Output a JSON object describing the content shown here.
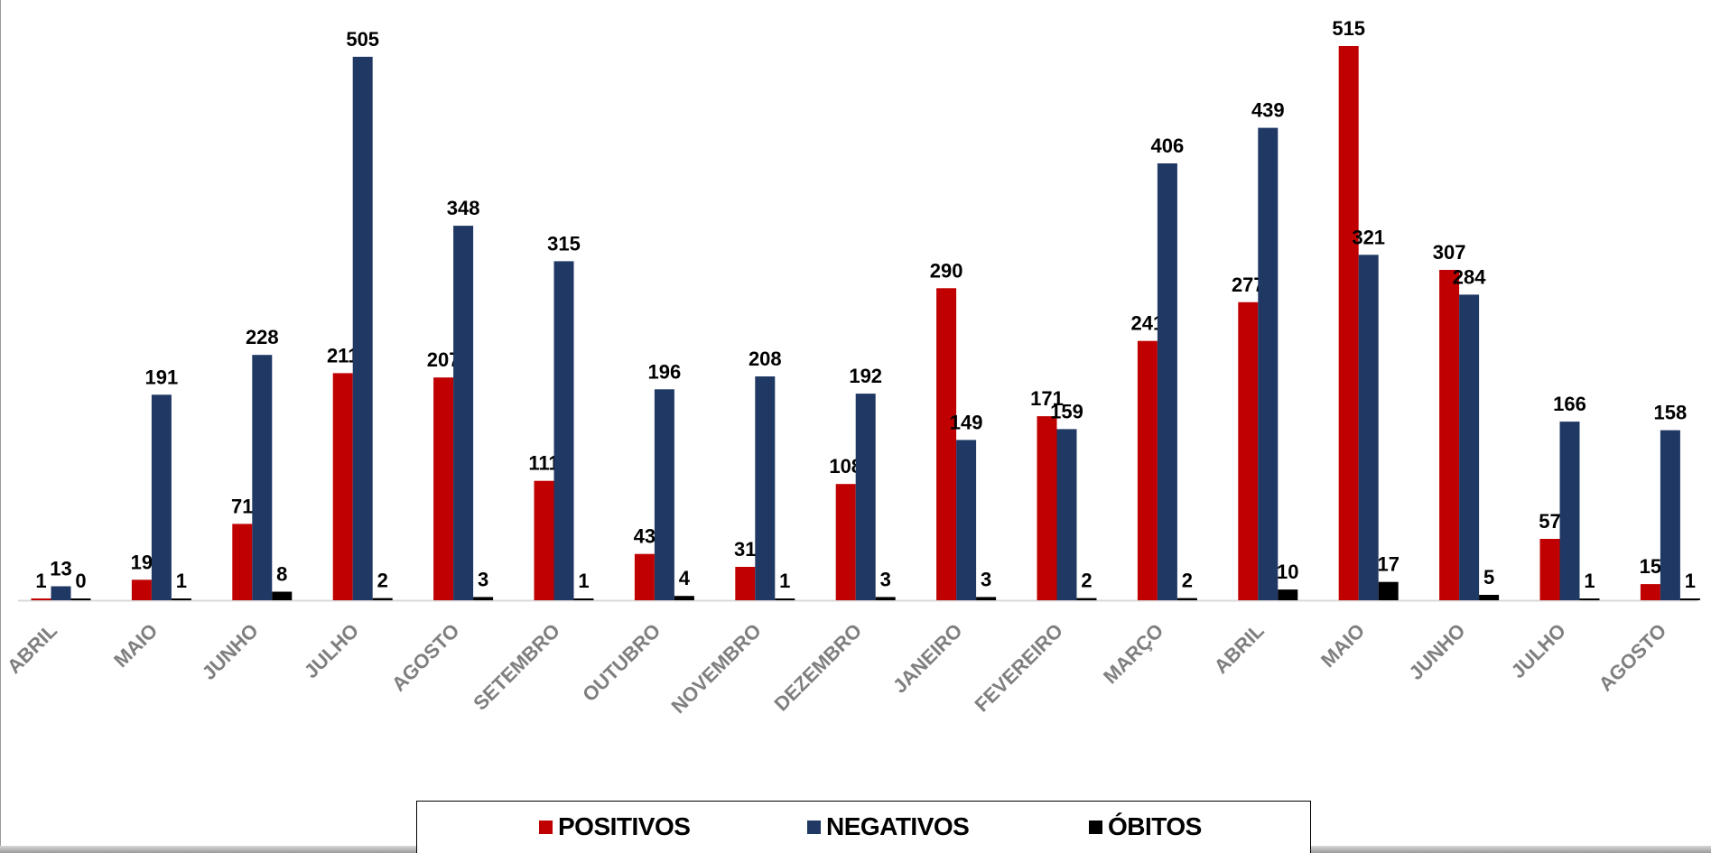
{
  "chart_data": {
    "type": "bar",
    "categories": [
      "ABRIL",
      "MAIO",
      "JUNHO",
      "JULHO",
      "AGOSTO",
      "SETEMBRO",
      "OUTUBRO",
      "NOVEMBRO",
      "DEZEMBRO",
      "JANEIRO",
      "FEVEREIRO",
      "MARÇO",
      "ABRIL",
      "MAIO",
      "JUNHO",
      "JULHO",
      "AGOSTO"
    ],
    "series": [
      {
        "name": "POSITIVOS",
        "color": "#c00000",
        "values": [
          1,
          19,
          71,
          211,
          207,
          111,
          43,
          31,
          108,
          290,
          171,
          241,
          277,
          515,
          307,
          57,
          15
        ]
      },
      {
        "name": "NEGATIVOS",
        "color": "#1f3864",
        "values": [
          13,
          191,
          228,
          505,
          348,
          315,
          196,
          208,
          192,
          149,
          159,
          406,
          439,
          321,
          284,
          166,
          158
        ]
      },
      {
        "name": "ÓBITOS",
        "color": "#000000",
        "values": [
          0,
          1,
          8,
          2,
          3,
          1,
          4,
          1,
          3,
          3,
          2,
          2,
          10,
          17,
          5,
          1,
          1
        ]
      }
    ],
    "ylim": [
      0,
      515
    ],
    "grid": false,
    "data_labels": true,
    "legend_position": "bottom"
  }
}
